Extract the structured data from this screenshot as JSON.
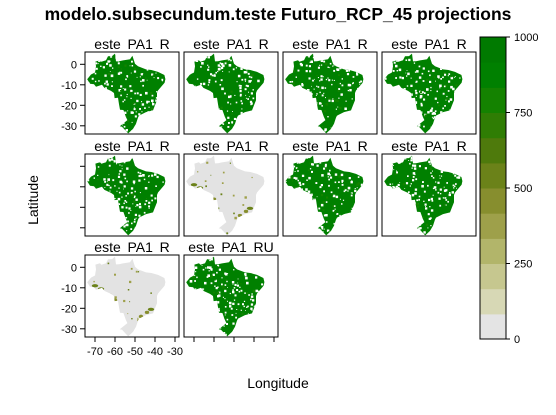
{
  "chart_data": {
    "type": "heatmap",
    "title": "modelo.subsecundum.teste Futuro_RCP_45 projections",
    "xlabel": "Longitude",
    "ylabel": "Latitude",
    "xlim": [
      -75,
      -28
    ],
    "ylim": [
      -34,
      6
    ],
    "x_ticks": [
      "-70",
      "-60",
      "-50",
      "-40",
      "-30"
    ],
    "y_ticks": [
      "0",
      "-10",
      "-20",
      "-30"
    ],
    "panels": [
      {
        "label": "este_PA1_R",
        "suitability": "high"
      },
      {
        "label": "este_PA1_R",
        "suitability": "high"
      },
      {
        "label": "este_PA1_R",
        "suitability": "high"
      },
      {
        "label": "este_PA1_R",
        "suitability": "high"
      },
      {
        "label": "este_PA1_R",
        "suitability": "high"
      },
      {
        "label": "este_PA1_R",
        "suitability": "low"
      },
      {
        "label": "este_PA1_R",
        "suitability": "high"
      },
      {
        "label": "este_PA1_R",
        "suitability": "high"
      },
      {
        "label": "este_PA1_R",
        "suitability": "low"
      },
      {
        "label": "este_PA1_RU",
        "suitability": "high"
      }
    ],
    "colorbar": {
      "min": 0,
      "max": 1000,
      "ticks": [
        "0",
        "250",
        "500",
        "750",
        "1000"
      ],
      "colors": [
        "#e4e4e4",
        "#d7d8b5",
        "#c6c78f",
        "#b2b56a",
        "#9ea04a",
        "#878e2e",
        "#6b8219",
        "#4e7a0c",
        "#2f7d04",
        "#148200",
        "#008000",
        "#007a00"
      ]
    }
  }
}
